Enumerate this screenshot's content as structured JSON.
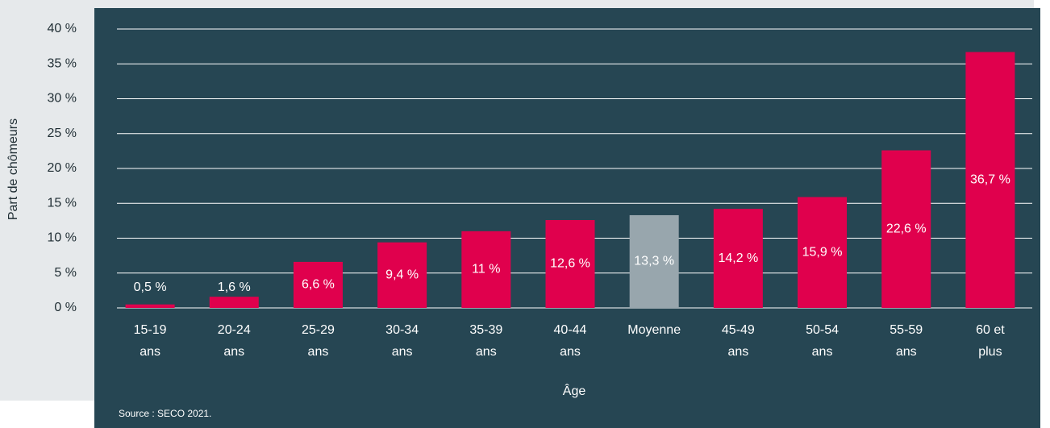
{
  "chart_data": {
    "type": "bar",
    "y_label": "Part de chômeurs",
    "x_label": "Âge",
    "source": "Source : SECO 2021.",
    "categories": [
      [
        "15-19",
        "ans"
      ],
      [
        "20-24",
        "ans"
      ],
      [
        "25-29",
        "ans"
      ],
      [
        "30-34",
        "ans"
      ],
      [
        "35-39",
        "ans"
      ],
      [
        "40-44",
        "ans"
      ],
      [
        "Moyenne"
      ],
      [
        "45-49",
        "ans"
      ],
      [
        "50-54",
        "ans"
      ],
      [
        "55-59",
        "ans"
      ],
      [
        "60 et",
        "plus"
      ]
    ],
    "values": [
      0.5,
      1.6,
      6.6,
      9.4,
      11,
      12.6,
      13.3,
      14.2,
      15.9,
      22.6,
      36.7
    ],
    "value_labels": [
      "0,5 %",
      "1,6 %",
      "6,6 %",
      "9,4 %",
      "11 %",
      "12,6 %",
      "13,3 %",
      "14,2 %",
      "15,9 %",
      "22,6 %",
      "36,7 %"
    ],
    "colors": [
      "#e0004d",
      "#e0004d",
      "#e0004d",
      "#e0004d",
      "#e0004d",
      "#e0004d",
      "#98a6ad",
      "#e0004d",
      "#e0004d",
      "#e0004d",
      "#e0004d"
    ],
    "ylim": [
      0,
      40
    ],
    "yticks": [
      {
        "value": 0,
        "label": "0 %"
      },
      {
        "value": 5,
        "label": "5 %"
      },
      {
        "value": 10,
        "label": "10 %"
      },
      {
        "value": 15,
        "label": "15 %"
      },
      {
        "value": 20,
        "label": "20 %"
      },
      {
        "value": 25,
        "label": "25 %"
      },
      {
        "value": 30,
        "label": "30 %"
      },
      {
        "value": 35,
        "label": "35 %"
      },
      {
        "value": 40,
        "label": "40 %"
      }
    ],
    "grid": true
  }
}
